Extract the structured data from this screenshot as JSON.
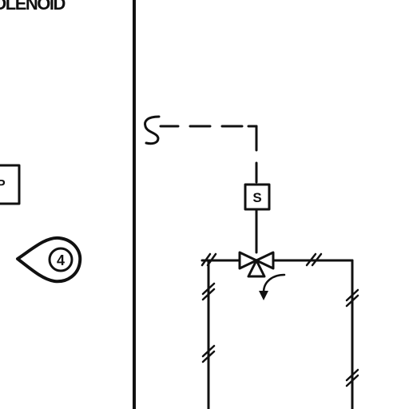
{
  "header": {
    "title_fragment": "SOLENOID"
  },
  "left_box": {
    "label": "P"
  },
  "callout": {
    "number": "4"
  },
  "solenoid": {
    "label": "S"
  },
  "colors": {
    "ink": "#111111",
    "background": "#ffffff"
  },
  "icons": {
    "callout": "pointer-balloon-icon",
    "valve": "three-way-valve-icon",
    "flow": "curved-flow-arrow-icon",
    "break": "pipe-break-hash-icon"
  }
}
